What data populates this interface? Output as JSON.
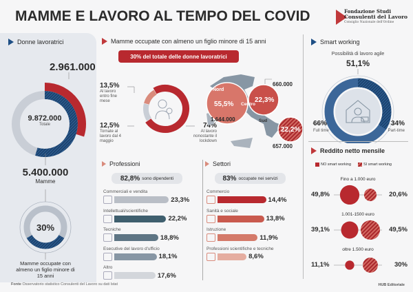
{
  "title": "MAMME E LAVORO AL TEMPO DEL COVID",
  "logo": {
    "line1": "Fondazione Studi",
    "line2": "Consulenti del Lavoro",
    "line3": "Consiglio Nazionale dell'Ordine"
  },
  "left": {
    "header": "Donne lavoratrici",
    "mamme_top": "2.961.000",
    "total": "9.872.000",
    "total_label": "Totale",
    "mamme": "5.400.000",
    "mamme_label": "Mamme",
    "pct": "30%",
    "pct_value": 30,
    "caption": "Mamme occupate con almeno un figlio minore di 15 anni"
  },
  "middle": {
    "header": "Mamme occupate con almeno un figlio minore di 15 anni",
    "pill": "30% del totale delle donne lavoratrici",
    "donut": [
      {
        "pct": "13,5%",
        "label": "Al lavoro entro fine mese",
        "value": 13.5
      },
      {
        "pct": "12,5%",
        "label": "Tornate al lavoro dal 4 maggio",
        "value": 12.5
      },
      {
        "pct": "74%",
        "label": "Al lavoro nonostante il lockdown",
        "value": 74
      }
    ],
    "map": [
      {
        "area": "Nord",
        "pct": "55,5%",
        "count": "1.644.000"
      },
      {
        "area": "Centro",
        "pct": "22,3%",
        "count": "660.000"
      },
      {
        "area": "Sud",
        "pct": "22,2%",
        "count": "657.000"
      }
    ]
  },
  "professioni": {
    "header": "Professioni",
    "pill_pct": "82,8%",
    "pill_text": "sono dipendenti",
    "items": [
      {
        "label": "Commerciali e vendita",
        "value": 23.3,
        "text": "23,3%",
        "color": "#b9bec6"
      },
      {
        "label": "Intellettuali/scientifiche",
        "value": 22.2,
        "text": "22,2%",
        "color": "#3f5f6e"
      },
      {
        "label": "Tecniche",
        "value": 18.8,
        "text": "18,8%",
        "color": "#5e7584"
      },
      {
        "label": "Esecutive del lavoro d'ufficio",
        "value": 18.1,
        "text": "18,1%",
        "color": "#8796a4"
      },
      {
        "label": "Altro",
        "value": 17.6,
        "text": "17,6%",
        "color": "#d3d6db"
      }
    ]
  },
  "settori": {
    "header": "Settori",
    "pill_pct": "83%",
    "pill_text": "occupate nei servizi",
    "items": [
      {
        "label": "Commercio",
        "value": 14.4,
        "text": "14,4%",
        "color": "#b8292f"
      },
      {
        "label": "Sanità e sociale",
        "value": 13.8,
        "text": "13,8%",
        "color": "#c95a4e"
      },
      {
        "label": "Istruzione",
        "value": 11.9,
        "text": "11,9%",
        "color": "#d47a6a"
      },
      {
        "label": "Professioni scientifiche e tecniche",
        "value": 8.6,
        "text": "8,6%",
        "color": "#e5ada0"
      }
    ]
  },
  "smart": {
    "header": "Smart working",
    "subtitle": "Possibilità di lavoro agile",
    "pct": "51,1%",
    "full": "66%",
    "full_label": "Full time",
    "part": "34%",
    "part_label": "Part-time",
    "part_value": 34
  },
  "reddito": {
    "header": "Reddito netto mensile",
    "legend_no": "NO smart working",
    "legend_si": "SI smart working",
    "rows": [
      {
        "label": "Fino a 1.000 euro",
        "no": 49.8,
        "no_text": "49,8%",
        "si": 20.6,
        "si_text": "20,6%"
      },
      {
        "label": "1.001-1500 euro",
        "no": 39.1,
        "no_text": "39,1%",
        "si": 49.5,
        "si_text": "49,5%"
      },
      {
        "label": "oltre 1.500 euro",
        "no": 11.1,
        "no_text": "11,1%",
        "si": 30,
        "si_text": "30%"
      }
    ]
  },
  "footer": {
    "source_label": "Fonte",
    "source": "Osservatorio statistico Consulenti del Lavoro su dati Istat",
    "credit": "HUB Editoriale"
  },
  "colors": {
    "red": "#b8292f",
    "blue": "#1e4f85",
    "gray": "#c9ced6"
  }
}
